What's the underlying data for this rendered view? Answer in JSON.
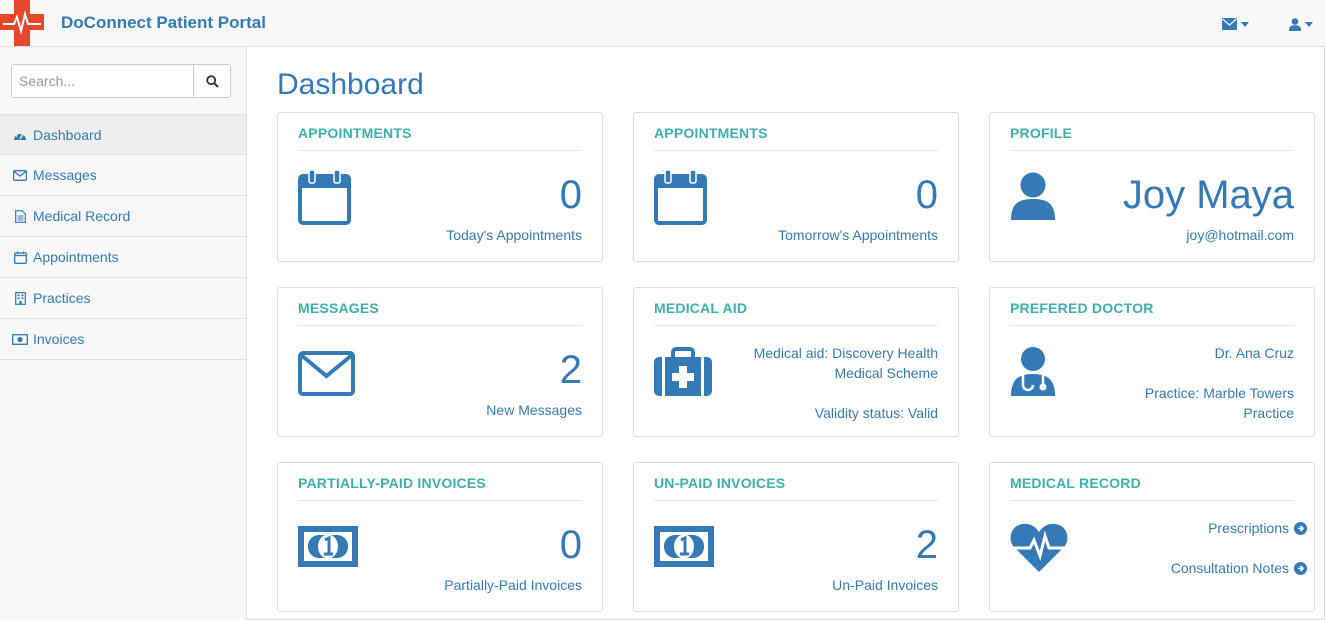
{
  "app": {
    "brand": "DoConnect Patient Portal",
    "accent": "#337ab7",
    "teal": "#3cb0b1",
    "logo_color": "#e8472d"
  },
  "navbar": {
    "mail_icon": "envelope-icon",
    "user_icon": "user-icon"
  },
  "sidebar": {
    "search_placeholder": "Search...",
    "items": [
      {
        "label": "Dashboard",
        "icon": "dashboard-icon"
      },
      {
        "label": "Messages",
        "icon": "envelope-icon"
      },
      {
        "label": "Medical Record",
        "icon": "file-icon"
      },
      {
        "label": "Appointments",
        "icon": "calendar-icon"
      },
      {
        "label": "Practices",
        "icon": "building-icon"
      },
      {
        "label": "Invoices",
        "icon": "money-icon"
      }
    ]
  },
  "main": {
    "title": "Dashboard",
    "today": {
      "heading": "APPOINTMENTS",
      "count": "0",
      "label": "Today's Appointments"
    },
    "tomorrow": {
      "heading": "APPOINTMENTS",
      "count": "0",
      "label": "Tomorrow's Appointments"
    },
    "profile": {
      "heading": "PROFILE",
      "name": "Joy Maya",
      "email": "joy@hotmail.com"
    },
    "messages": {
      "heading": "MESSAGES",
      "count": "2",
      "label": "New Messages"
    },
    "medical_aid": {
      "heading": "MEDICAL AID",
      "line1": "Medical aid: Discovery Health",
      "line2": "Medical Scheme",
      "validity": "Validity status: Valid"
    },
    "doctor": {
      "heading": "PREFERED DOCTOR",
      "name": "Dr. Ana Cruz",
      "practice1": "Practice: Marble Towers",
      "practice2": "Practice"
    },
    "partial": {
      "heading": "PARTIALLY-PAID INVOICES",
      "count": "0",
      "label": "Partially-Paid Invoices"
    },
    "unpaid": {
      "heading": "UN-PAID INVOICES",
      "count": "2",
      "label": "Un-Paid Invoices"
    },
    "record": {
      "heading": "MEDICAL RECORD",
      "link1": "Prescriptions",
      "link2": "Consultation Notes"
    }
  }
}
